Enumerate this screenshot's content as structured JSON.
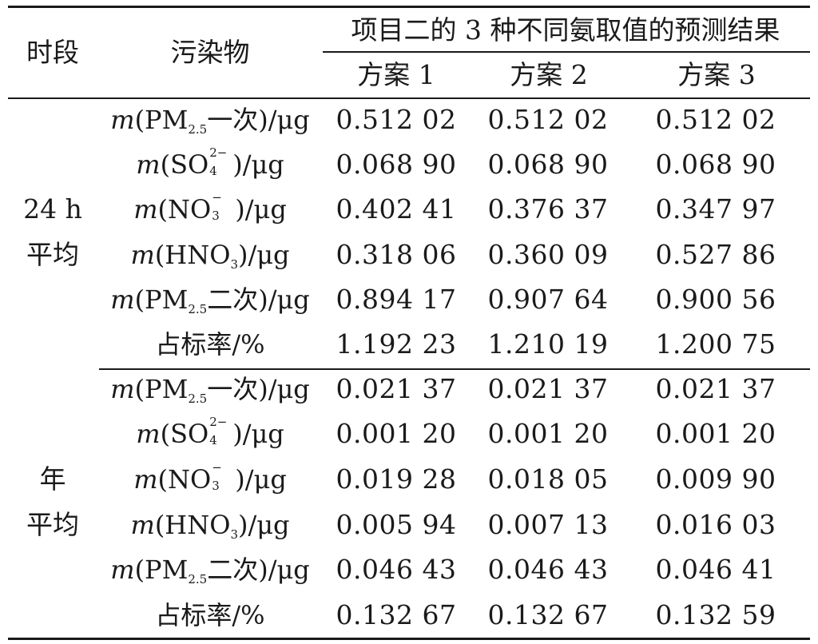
{
  "header": {
    "period": "时段",
    "pollutant": "污染物",
    "group_title": "项目二的 3 种不同氨取值的预测结果",
    "schemes": [
      "方案 1",
      "方案 2",
      "方案 3"
    ]
  },
  "sections": [
    {
      "period_line1": "24 h",
      "period_line2": "平均",
      "rows": [
        {
          "pre": "(PM",
          "sub": "2.5",
          "suffix": "一次)/μg",
          "values": [
            "0.512 02",
            "0.512 02",
            "0.512 02"
          ]
        },
        {
          "pre": "(SO",
          "sup": "2−",
          "sub": "4",
          "suffix": ")/μg",
          "values": [
            "0.068 90",
            "0.068 90",
            "0.068 90"
          ]
        },
        {
          "pre": "(NO",
          "sup": "−",
          "sub": "3",
          "suffix": ")/μg",
          "values": [
            "0.402 41",
            "0.376 37",
            "0.347 97"
          ]
        },
        {
          "pre": "(HNO",
          "sub": "3",
          "suffix": ")/μg",
          "values": [
            "0.318 06",
            "0.360 09",
            "0.527 86"
          ]
        },
        {
          "pre": "(PM",
          "sub": "2.5",
          "suffix": "二次)/μg",
          "values": [
            "0.894 17",
            "0.907 64",
            "0.900 56"
          ]
        },
        {
          "label": "占标率/%",
          "values": [
            "1.192 23",
            "1.210 19",
            "1.200 75"
          ]
        }
      ]
    },
    {
      "period_line1": "年",
      "period_line2": "平均",
      "rows": [
        {
          "pre": "(PM",
          "sub": "2.5",
          "suffix": "一次)/μg",
          "values": [
            "0.021 37",
            "0.021 37",
            "0.021 37"
          ]
        },
        {
          "pre": "(SO",
          "sup": "2−",
          "sub": "4",
          "suffix": ")/μg",
          "values": [
            "0.001 20",
            "0.001 20",
            "0.001 20"
          ]
        },
        {
          "pre": "(NO",
          "sup": "−",
          "sub": "3",
          "suffix": ")/μg",
          "values": [
            "0.019 28",
            "0.018 05",
            "0.009 90"
          ]
        },
        {
          "pre": "(HNO",
          "sub": "3",
          "suffix": ")/μg",
          "values": [
            "0.005 94",
            "0.007 13",
            "0.016 03"
          ]
        },
        {
          "pre": "(PM",
          "sub": "2.5",
          "suffix": "二次)/μg",
          "values": [
            "0.046 43",
            "0.046 43",
            "0.046 41"
          ]
        },
        {
          "label": "占标率/%",
          "values": [
            "0.132 67",
            "0.132 67",
            "0.132 59"
          ]
        }
      ]
    }
  ]
}
